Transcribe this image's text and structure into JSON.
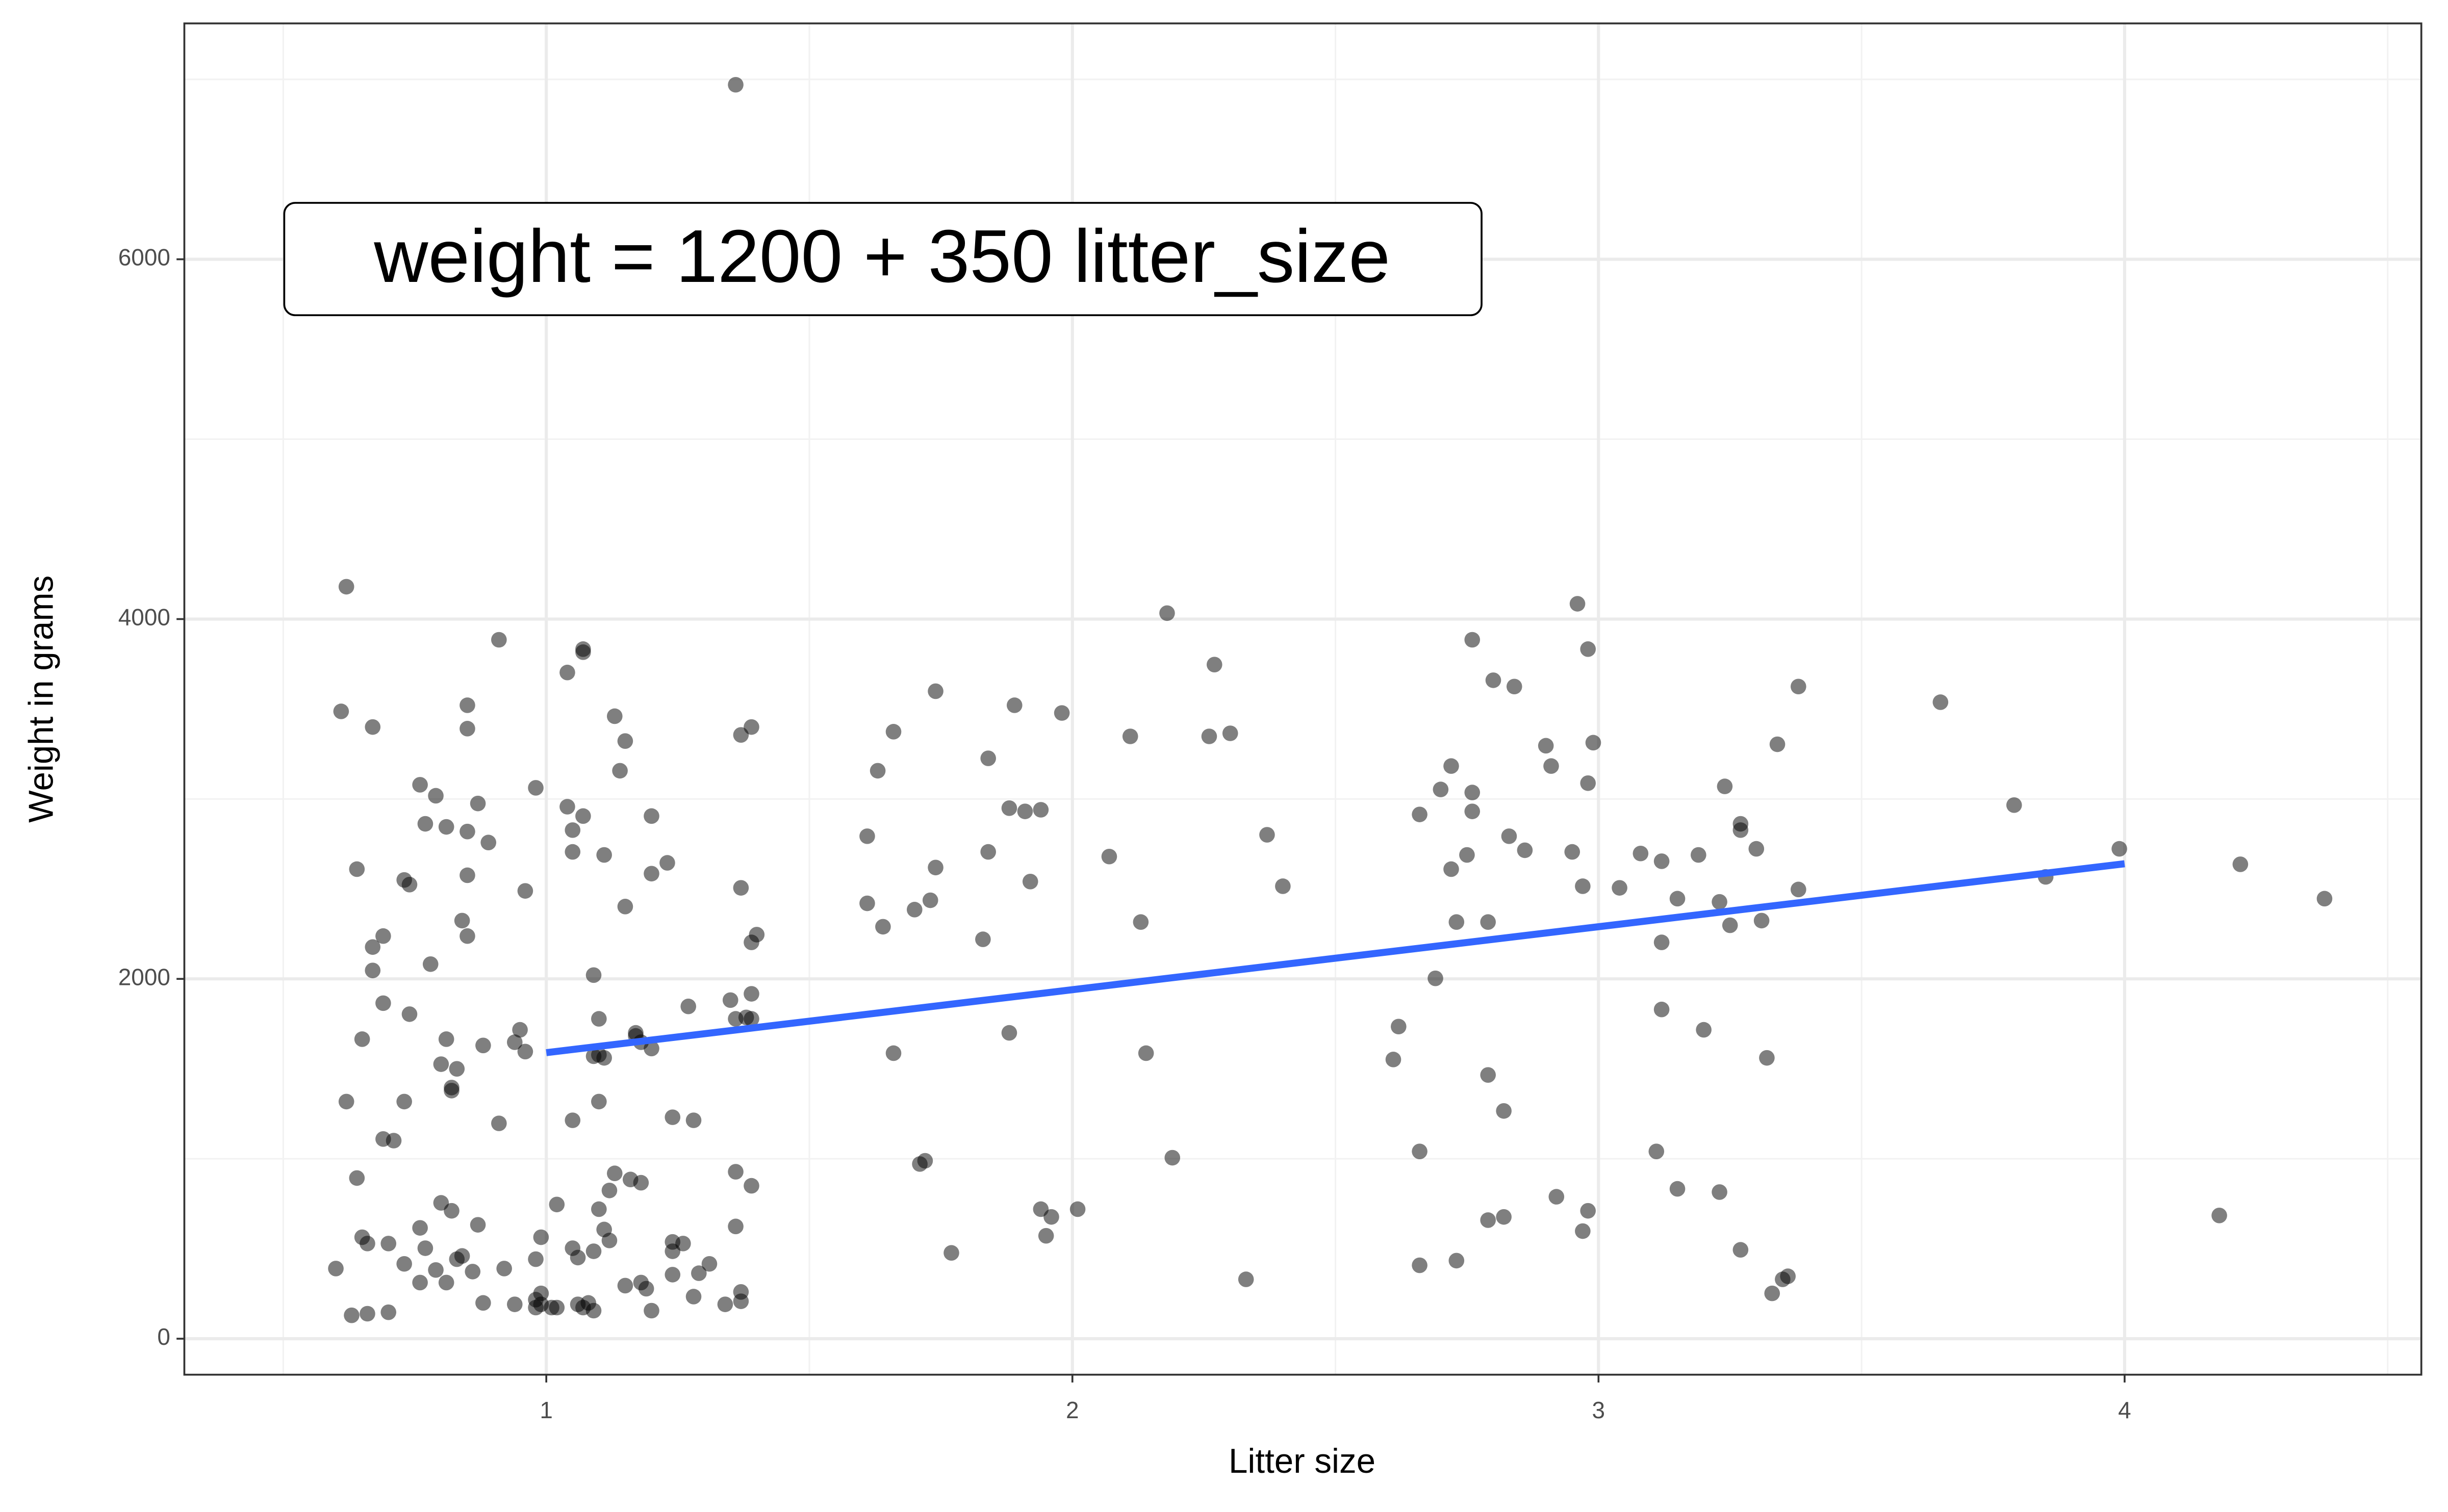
{
  "chart_data": {
    "type": "scatter",
    "x_label": "Litter size",
    "y_label": "Weight in grams",
    "annotation": "weight = 1200 + 350 litter_size",
    "xlim": [
      0.312,
      4.564
    ],
    "ylim": [
      -200,
      7311
    ],
    "xticks": [
      1,
      2,
      3,
      4
    ],
    "yticks": [
      0,
      2000,
      4000,
      6000
    ],
    "xminor": [
      0.5,
      1.5,
      2.5,
      3.5,
      4.5
    ],
    "yminor": [
      1000,
      3000,
      5000,
      7000
    ],
    "grid": true,
    "color": "#000000",
    "x": [
      1.36,
      0.62,
      0.61,
      0.67,
      0.64,
      0.91,
      0.85,
      0.85,
      0.76,
      0.79,
      0.87,
      0.77,
      0.81,
      0.85,
      0.89,
      0.73,
      0.74,
      0.85,
      0.96,
      0.69,
      0.67,
      0.84,
      0.85,
      0.67,
      0.78,
      0.69,
      0.74,
      0.65,
      0.81,
      0.88,
      0.94,
      0.95,
      0.96,
      0.8,
      0.83,
      0.82,
      0.82,
      0.62,
      0.73,
      0.69,
      0.71,
      0.91,
      0.64,
      0.8,
      0.82,
      0.76,
      0.87,
      0.65,
      0.66,
      0.7,
      0.77,
      0.84,
      0.83,
      0.73,
      0.79,
      0.86,
      0.6,
      0.92,
      0.76,
      0.81,
      0.88,
      0.63,
      0.66,
      0.7,
      0.94,
      0.99,
      0.98,
      0.99,
      1.01,
      0.98,
      1.02,
      0.98,
      0.99,
      0.98,
      1.02,
      1.07,
      1.07,
      1.04,
      1.13,
      1.15,
      1.14,
      1.04,
      1.07,
      1.05,
      1.05,
      1.11,
      1.2,
      1.2,
      1.23,
      1.15,
      1.09,
      1.1,
      1.17,
      1.17,
      1.18,
      1.2,
      1.1,
      1.11,
      1.09,
      1.1,
      1.05,
      1.24,
      1.28,
      1.27,
      1.13,
      1.16,
      1.18,
      1.12,
      1.1,
      1.11,
      1.12,
      1.24,
      1.24,
      1.26,
      1.09,
      1.05,
      1.06,
      1.31,
      1.29,
      1.24,
      1.15,
      1.18,
      1.19,
      1.28,
      1.08,
      1.07,
      1.09,
      1.2,
      1.06,
      1.34,
      1.37,
      1.37,
      1.36,
      1.36,
      1.39,
      1.35,
      1.39,
      1.36,
      1.38,
      1.39,
      1.39,
      1.4,
      1.37,
      1.37,
      1.39,
      2.18,
      2.27,
      1.74,
      1.89,
      1.98,
      1.66,
      2.11,
      2.26,
      2.3,
      1.84,
      1.63,
      1.88,
      1.91,
      1.94,
      1.61,
      1.84,
      2.07,
      2.37,
      1.74,
      1.92,
      2.4,
      1.73,
      1.7,
      1.61,
      1.64,
      2.13,
      1.83,
      1.88,
      1.66,
      2.14,
      1.72,
      1.71,
      2.19,
      1.94,
      1.96,
      2.01,
      1.95,
      1.77,
      2.33,
      2.96,
      2.76,
      2.98,
      2.8,
      2.84,
      2.9,
      2.99,
      2.72,
      2.91,
      2.98,
      2.7,
      2.76,
      2.66,
      2.76,
      2.83,
      2.86,
      2.75,
      2.95,
      3.08,
      3.12,
      3.19,
      2.72,
      2.97,
      3.04,
      3.15,
      3.23,
      2.73,
      2.79,
      3.12,
      2.69,
      2.62,
      3.12,
      3.2,
      2.61,
      2.79,
      2.82,
      2.66,
      3.11,
      2.92,
      2.98,
      3.15,
      3.23,
      2.82,
      2.79,
      2.97,
      2.66,
      2.73,
      3.24,
      3.27,
      3.27,
      3.3,
      3.31,
      3.25,
      3.34,
      3.38,
      3.38,
      3.32,
      3.27,
      3.33,
      3.36,
      3.35,
      3.65,
      3.79,
      3.99,
      3.85,
      4.22,
      4.38,
      4.18
    ],
    "values": [
      6970,
      4180,
      3487,
      3400,
      2610,
      3885,
      3521,
      3391,
      3079,
      3018,
      2975,
      2862,
      2845,
      2819,
      2758,
      2550,
      2524,
      2576,
      2489,
      2238,
      2177,
      2324,
      2238,
      2047,
      2082,
      1865,
      1804,
      1665,
      1665,
      1630,
      1648,
      1717,
      1596,
      1526,
      1500,
      1396,
      1379,
      1318,
      1318,
      1110,
      1101,
      1197,
      893,
      755,
      711,
      616,
      633,
      564,
      529,
      529,
      503,
      460,
      442,
      416,
      382,
      373,
      390,
      390,
      312,
      312,
      199,
      130,
      139,
      147,
      191,
      252,
      217,
      191,
      173,
      173,
      173,
      442,
      564,
      3062,
      746,
      3816,
      3833,
      3703,
      3460,
      3322,
      3157,
      2957,
      2905,
      2827,
      2706,
      2689,
      2905,
      2585,
      2645,
      2402,
      2021,
      1778,
      1700,
      1683,
      1648,
      1613,
      1578,
      1561,
      1570,
      1318,
      1214,
      1231,
      1214,
      1847,
      919,
      885,
      867,
      824,
      720,
      607,
      546,
      538,
      486,
      529,
      486,
      503,
      451,
      416,
      364,
      356,
      295,
      312,
      278,
      234,
      199,
      173,
      156,
      156,
      191,
      191,
      260,
      208,
      624,
      928,
      850,
      1882,
      1917,
      1778,
      1786,
      1778,
      2203,
      2246,
      2506,
      3356,
      3400,
      4033,
      3747,
      3599,
      3521,
      3478,
      3374,
      3348,
      3348,
      3365,
      3226,
      3157,
      2949,
      2931,
      2940,
      2793,
      2706,
      2680,
      2801,
      2619,
      2541,
      2515,
      2437,
      2385,
      2420,
      2290,
      2316,
      2220,
      1700,
      1587,
      1587,
      989,
      971,
      1006,
      720,
      677,
      720,
      572,
      477,
      330,
      4085,
      3885,
      3833,
      3660,
      3625,
      3296,
      3313,
      3183,
      3183,
      3088,
      3053,
      3036,
      2914,
      2931,
      2793,
      2715,
      2689,
      2706,
      2697,
      2654,
      2689,
      2610,
      2515,
      2506,
      2446,
      2428,
      2316,
      2316,
      2203,
      2003,
      1735,
      1830,
      1717,
      1552,
      1466,
      1266,
      1041,
      1041,
      789,
      711,
      833,
      815,
      677,
      659,
      598,
      408,
      434,
      3070,
      2862,
      2827,
      2723,
      2324,
      2298,
      3304,
      3625,
      2497,
      1561,
      494,
      252,
      347,
      330,
      3538,
      2966,
      2723,
      2567,
      2637,
      2446,
      685
    ],
    "fit_line": {
      "x": [
        1,
        4
      ],
      "values": [
        1590,
        2640
      ],
      "color": "#3366ff"
    }
  }
}
